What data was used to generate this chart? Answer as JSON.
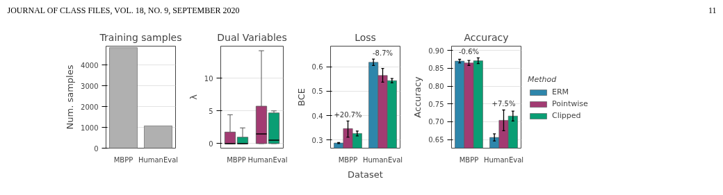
{
  "chart_data": [
    {
      "type": "other",
      "annotations": [
        "JOURNAL OF CLASS FILES, VOL. 18, NO. 9, SEPTEMBER 2020",
        "11"
      ]
    },
    {
      "type": "bar",
      "title": "Training samples",
      "ylabel": "Num. samples",
      "categories": [
        "MBPP",
        "HumanEval"
      ],
      "values": [
        4830,
        1070
      ],
      "color": "#b0b0b0",
      "ylim": [
        0,
        4900
      ],
      "yticks": [
        0,
        1000,
        2000,
        3000,
        4000
      ],
      "grid": "y"
    },
    {
      "type": "box",
      "title": "Dual Variables",
      "ylabel": "λ",
      "categories": [
        "MBPP",
        "HumanEval"
      ],
      "ylim": [
        -0.7,
        14.9
      ],
      "yticks": [
        0,
        5,
        10
      ],
      "grid": "y",
      "series": [
        {
          "color": "#a23b72",
          "boxes": [
            {
              "low": 0,
              "q1": 0,
              "median": 0,
              "q3": 1.76,
              "high": 4.41
            },
            {
              "low": 0,
              "q1": 0,
              "median": 1.48,
              "q3": 5.72,
              "high": 14.2
            }
          ]
        },
        {
          "color": "#0a9e74",
          "boxes": [
            {
              "low": 0,
              "q1": 0,
              "median": 0,
              "q3": 0.98,
              "high": 2.4
            },
            {
              "low": 0,
              "q1": 0,
              "median": 0.53,
              "q3": 4.69,
              "high": 5.0
            }
          ]
        }
      ]
    },
    {
      "type": "bar",
      "title": "Loss",
      "xlabel": "Dataset",
      "ylabel": "BCE",
      "categories": [
        "MBPP",
        "HumanEval"
      ],
      "ylim": [
        0.267,
        0.684
      ],
      "yticks": [
        0.3,
        0.4,
        0.5,
        0.6
      ],
      "grid": "y",
      "series": [
        {
          "color": "#2e86ab",
          "values": [
            0.288,
            0.618
          ],
          "errors": [
            0.002,
            0.013
          ]
        },
        {
          "color": "#a23b72",
          "values": [
            0.347,
            0.564
          ],
          "errors": [
            [
              0.312,
              0.378
            ],
            [
              0.537,
              0.593
            ]
          ]
        },
        {
          "color": "#0a9e74",
          "values": [
            0.327,
            0.543
          ],
          "errors": [
            0.01,
            0.009
          ]
        }
      ],
      "annotations": [
        "+20.7%",
        "-8.7%"
      ]
    },
    {
      "type": "bar",
      "title": "Accuracy",
      "ylabel": "Accuracy",
      "categories": [
        "MBPP",
        "HumanEval"
      ],
      "ylim": [
        0.626,
        0.912
      ],
      "yticks": [
        {
          "value": 0.65,
          "label": "0.65"
        },
        {
          "value": 0.7,
          "label": "0.70"
        },
        {
          "value": 0.75,
          "label": "0.75"
        },
        {
          "value": 0.8,
          "label": "0.80"
        },
        {
          "value": 0.85,
          "label": "0.85"
        },
        {
          "value": 0.9,
          "label": "0.90"
        }
      ],
      "grid": "y",
      "legend": "right",
      "legend_title": "Method",
      "series": [
        {
          "name": "ERM",
          "color": "#2e86ab",
          "values": [
            0.87,
            0.656
          ],
          "errors": [
            0.005,
            0.01
          ]
        },
        {
          "name": "Pointwise",
          "color": "#a23b72",
          "values": [
            0.865,
            0.704
          ],
          "errors": [
            0.007,
            [
              0.675,
              0.733
            ]
          ]
        },
        {
          "name": "Clipped",
          "color": "#0a9e74",
          "values": [
            0.871,
            0.716
          ],
          "errors": [
            0.008,
            0.014
          ]
        }
      ],
      "annotations": [
        "-0.6%",
        "+7.5%"
      ]
    }
  ]
}
